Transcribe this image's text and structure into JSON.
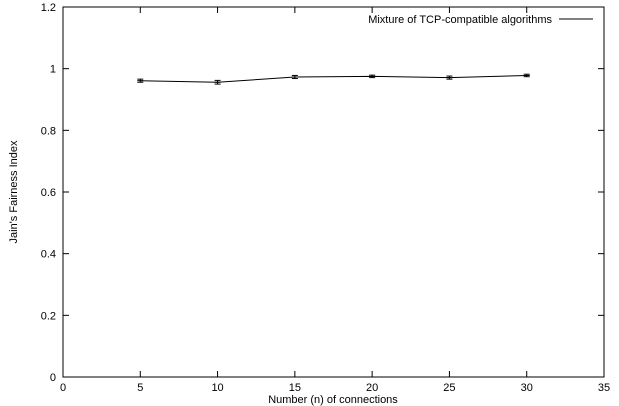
{
  "chart_data": {
    "type": "line",
    "title": "",
    "xlabel": "Number (n) of connections",
    "ylabel": "Jain's Fairness Index",
    "xlim": [
      0,
      35
    ],
    "ylim": [
      0,
      1.2
    ],
    "x_ticks": [
      "0",
      "5",
      "10",
      "15",
      "20",
      "25",
      "30",
      "35"
    ],
    "y_ticks": [
      "0",
      "0.2",
      "0.4",
      "0.6",
      "0.8",
      "1",
      "1.2"
    ],
    "grid": false,
    "legend_position": "top-right",
    "series": [
      {
        "name": "Mixture of TCP-compatible algorithms",
        "x": [
          5,
          10,
          15,
          20,
          25,
          30
        ],
        "y": [
          0.961,
          0.956,
          0.973,
          0.975,
          0.971,
          0.978
        ],
        "error": [
          0.005,
          0.006,
          0.005,
          0.004,
          0.005,
          0.004
        ],
        "color": "#000000"
      }
    ]
  }
}
